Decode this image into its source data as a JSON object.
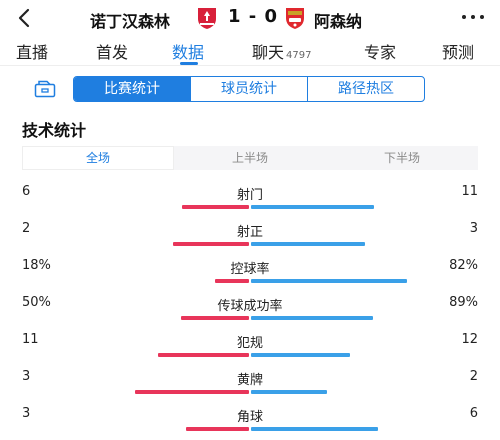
{
  "header": {
    "home_team": "诺丁汉森林",
    "score": "1 - 0",
    "away_team": "阿森纳"
  },
  "tabs": [
    {
      "label": "直播",
      "active": false
    },
    {
      "label": "首发",
      "active": false
    },
    {
      "label": "数据",
      "active": true
    },
    {
      "label": "聊天",
      "count": "4797",
      "active": false
    },
    {
      "label": "专家",
      "active": false
    },
    {
      "label": "预测",
      "active": false
    }
  ],
  "segments": [
    {
      "label": "比赛统计",
      "active": true
    },
    {
      "label": "球员统计",
      "active": false
    },
    {
      "label": "路径热区",
      "active": false
    }
  ],
  "section_title": "技术统计",
  "periods": [
    {
      "label": "全场",
      "active": true
    },
    {
      "label": "上半场",
      "active": false
    },
    {
      "label": "下半场",
      "active": false
    }
  ],
  "colors": {
    "accent": "#1f7ee0",
    "home_bar": "#e8355a",
    "away_bar": "#3aa0e8"
  },
  "stats": [
    {
      "label": "射门",
      "home": "6",
      "away": "11",
      "home_val": 6,
      "away_val": 11
    },
    {
      "label": "射正",
      "home": "2",
      "away": "3",
      "home_val": 2,
      "away_val": 3
    },
    {
      "label": "控球率",
      "home": "18%",
      "away": "82%",
      "home_val": 18,
      "away_val": 82
    },
    {
      "label": "传球成功率",
      "home": "50%",
      "away": "89%",
      "home_val": 50,
      "away_val": 89
    },
    {
      "label": "犯规",
      "home": "11",
      "away": "12",
      "home_val": 11,
      "away_val": 12
    },
    {
      "label": "黄牌",
      "home": "3",
      "away": "2",
      "home_val": 3,
      "away_val": 2
    },
    {
      "label": "角球",
      "home": "3",
      "away": "6",
      "home_val": 3,
      "away_val": 6
    }
  ]
}
